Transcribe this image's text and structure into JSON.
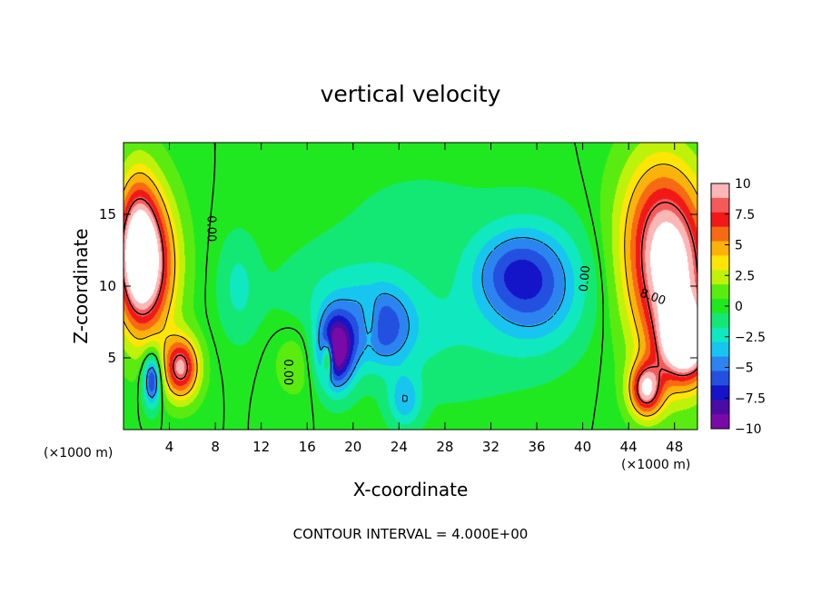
{
  "chart_data": {
    "type": "heatmap",
    "title": "vertical velocity",
    "xlabel": "X-coordinate",
    "ylabel": "Z-coordinate",
    "x_unit": "(×1000 m)",
    "z_unit": "(×1000 m)",
    "xlim": [
      0,
      50
    ],
    "ylim": [
      0,
      20
    ],
    "x_ticks": [
      4,
      8,
      12,
      16,
      20,
      24,
      28,
      32,
      36,
      40,
      44,
      48
    ],
    "y_ticks": [
      5,
      10,
      15
    ],
    "colorbar": {
      "range": [
        -10,
        10
      ],
      "ticks": [
        10,
        7.5,
        5,
        2.5,
        0,
        -2.5,
        -5,
        -7.5,
        -10
      ],
      "tick_labels": [
        "10",
        "7.5",
        "5",
        "2.5",
        "0",
        "−2.5",
        "−5",
        "−7.5",
        "−10"
      ],
      "colors": [
        "#fbb6b6",
        "#f45a5a",
        "#f21818",
        "#f66a14",
        "#fbb20a",
        "#fde505",
        "#bff20a",
        "#5aec10",
        "#20e820",
        "#14e874",
        "#10e8c0",
        "#18c4f0",
        "#2c84f0",
        "#2450e0",
        "#1414c8",
        "#4a0ca4",
        "#7a0aa8"
      ]
    },
    "contour_interval": "CONTOUR INTERVAL = 4.000E+00",
    "contour_labels": [
      "0.00",
      "0.00",
      "0.00",
      "8.00"
    ],
    "features": [
      {
        "x": 2.0,
        "z": 11.5,
        "w": 10,
        "sx": 1.8,
        "sz": 3.5
      },
      {
        "x": 1.2,
        "z": 13.0,
        "w": 6,
        "sx": 1.2,
        "sz": 3.5
      },
      {
        "x": 5.0,
        "z": 4.3,
        "w": 9,
        "sx": 1.1,
        "sz": 1.5
      },
      {
        "x": 2.5,
        "z": 3.5,
        "w": -7.5,
        "sx": 0.55,
        "sz": 1.3
      },
      {
        "x": 18.5,
        "z": 5.5,
        "w": -10,
        "sx": 1.1,
        "sz": 1.8
      },
      {
        "x": 17.8,
        "z": 5.0,
        "w": 7,
        "sx": 0.35,
        "sz": 0.9
      },
      {
        "x": 22.5,
        "z": 7.0,
        "w": -4.5,
        "sx": 1.8,
        "sz": 1.8
      },
      {
        "x": 36.0,
        "z": 10.0,
        "w": -5,
        "sx": 3.0,
        "sz": 3.0
      },
      {
        "x": 33.5,
        "z": 11.0,
        "w": -3,
        "sx": 2.5,
        "sz": 2.0
      },
      {
        "x": 20.0,
        "z": 9.0,
        "w": -2.2,
        "sx": 4.5,
        "sz": 2.5
      },
      {
        "x": 10.0,
        "z": 10.0,
        "w": -2,
        "sx": 1.2,
        "sz": 2.5
      },
      {
        "x": 24.5,
        "z": 2.0,
        "w": -3.5,
        "sx": 1.0,
        "sz": 1.3
      },
      {
        "x": 48.0,
        "z": 10.0,
        "w": 9,
        "sx": 2.5,
        "sz": 4.5
      },
      {
        "x": 49.0,
        "z": 6.0,
        "w": 10,
        "sx": 1.5,
        "sz": 1.8
      },
      {
        "x": 45.5,
        "z": 2.8,
        "w": 9,
        "sx": 1.0,
        "sz": 1.3
      },
      {
        "x": 46.5,
        "z": 14.0,
        "w": 5,
        "sx": 2.5,
        "sz": 4.0
      },
      {
        "x": 21.5,
        "z": 7.5,
        "w": 2.5,
        "sx": 0.6,
        "sz": 1.2
      },
      {
        "x": 15.0,
        "z": 5.0,
        "w": 1.5,
        "sx": 1.5,
        "sz": 2.0
      },
      {
        "x": 28.0,
        "z": 6.0,
        "w": -1.5,
        "sx": 5.0,
        "sz": 3.0
      },
      {
        "x": 26.0,
        "z": 15.0,
        "w": -0.8,
        "sx": 6.0,
        "sz": 3.0
      }
    ]
  }
}
